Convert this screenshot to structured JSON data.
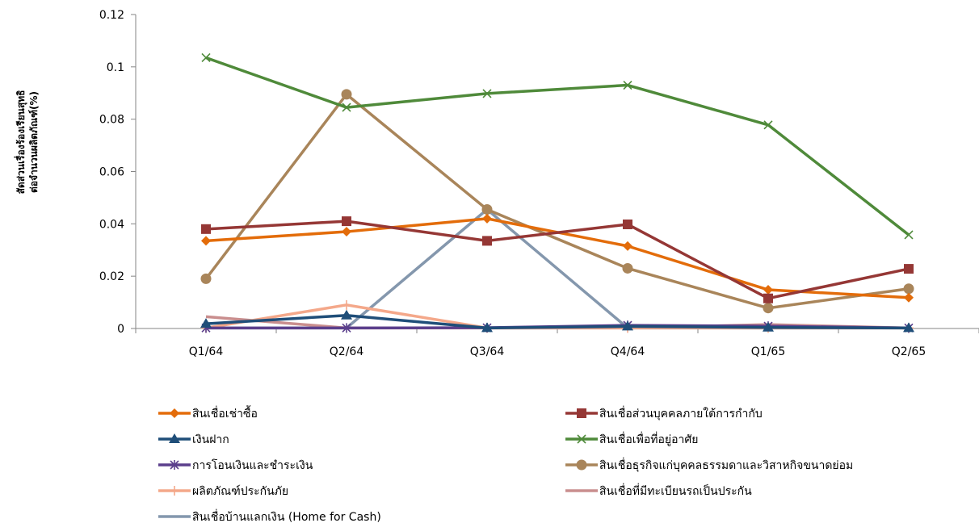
{
  "chart_data": {
    "type": "line",
    "categories": [
      "Q1/64",
      "Q2/64",
      "Q3/64",
      "Q4/64",
      "Q1/65",
      "Q2/65"
    ],
    "ylabel_lines": [
      "สัดส่วนเรื่องร้องเรียนสุทธิ",
      "ต่อจำนวนผลิตภัณฑ์(%)"
    ],
    "ylim": [
      0,
      0.12
    ],
    "yticks": [
      "0",
      "0.02",
      "0.04",
      "0.06",
      "0.08",
      "0.1",
      "0.12"
    ],
    "ytick_values": [
      0,
      0.02,
      0.04,
      0.06,
      0.08,
      0.1,
      0.12
    ],
    "grid": false,
    "legend_position": "bottom",
    "series": [
      {
        "name": "สินเชื่อเช่าซื้อ",
        "color": "#E36C0A",
        "marker": "diamond",
        "values": [
          0.0335,
          0.037,
          0.042,
          0.0315,
          0.0148,
          0.0118
        ]
      },
      {
        "name": "สินเชื่อส่วนบุคคลภายใต้การกำกับ",
        "color": "#953735",
        "marker": "square",
        "values": [
          0.038,
          0.041,
          0.0335,
          0.0398,
          0.0115,
          0.0228
        ]
      },
      {
        "name": "เงินฝาก",
        "color": "#1F4E79",
        "marker": "triangle",
        "values": [
          0.0018,
          0.005,
          0.0002,
          0.0008,
          0.0004,
          0.0002
        ]
      },
      {
        "name": "สินเชื่อเพื่อที่อยู่อาศัย",
        "color": "#4F8A3A",
        "marker": "x",
        "values": [
          0.1035,
          0.0845,
          0.0898,
          0.093,
          0.0778,
          0.0358
        ]
      },
      {
        "name": "การโอนเงินและชำระเงิน",
        "color": "#5B3F8C",
        "marker": "star",
        "values": [
          0.0002,
          0.0002,
          0.0003,
          0.0012,
          0.0009,
          0.0002
        ]
      },
      {
        "name": "สินเชื่อธุรกิจแก่บุคคลธรรมดาและวิสาหกิจขนาดย่อม",
        "color": "#A9855A",
        "marker": "circle",
        "values": [
          0.019,
          0.0895,
          0.0455,
          0.023,
          0.0078,
          0.0152
        ]
      },
      {
        "name": "ผลิตภัณฑ์ประกันภัย",
        "color": "#F4A88A",
        "marker": "plus",
        "values": [
          0.0002,
          0.009,
          0.0002,
          0.0002,
          0.0002,
          0.0002
        ]
      },
      {
        "name": "สินเชื่อที่มีทะเบียนรถเป็นประกัน",
        "color": "#C98E8E",
        "marker": "none",
        "values": [
          0.0045,
          0.0002,
          0.0002,
          0.0002,
          0.0015,
          0.0002
        ]
      },
      {
        "name": "สินเชื่อบ้านแลกเงิน (Home for Cash)",
        "color": "#8497AD",
        "marker": "none",
        "values": [
          0.0002,
          0.0002,
          0.0455,
          0.0002,
          0.0002,
          0.0002
        ]
      }
    ]
  }
}
